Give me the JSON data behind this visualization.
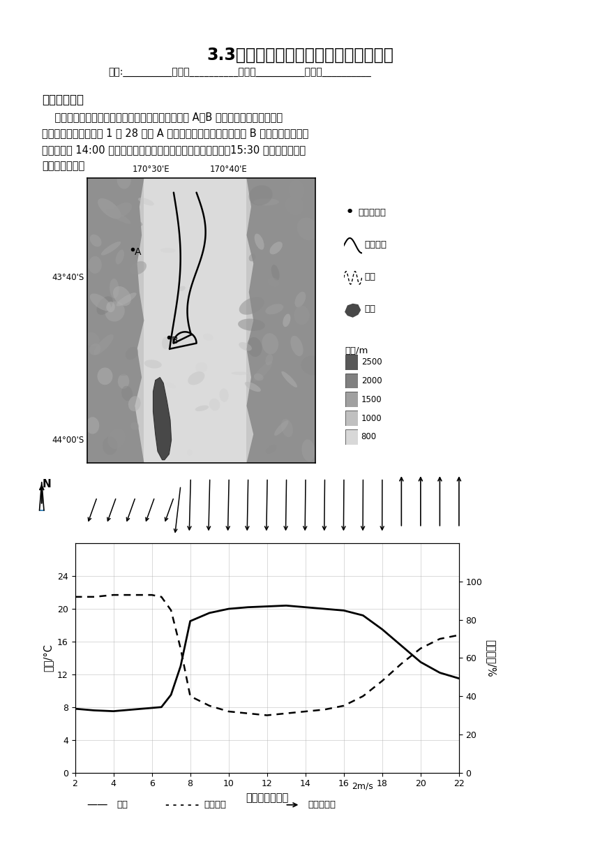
{
  "title": "3.3气压带和风带对气候的影响同步练习",
  "subtitle_fields": "学校:―――――姓名： ―――――班级： ―――――考号： ―――――",
  "section_title": "一、选择题组",
  "paragraph1": "    为了研究某地焦风的发展变化，研究人员在该地设 A、B 两处气象观测点进行观测",
  "paragraph2": "（图左）。图右为某年 1 月 28 日在 A 观测点获取的气象数据。另据 B 观测点数据显示，",
  "paragraph3": "当日地方时 14:00 左右该处出现一个锋面，停留了一段时间后，15:30 左右开始移动。",
  "paragraph4": "完成下面小题。",
  "map_lon1": "170°30'E",
  "map_lon2": "170°40'E",
  "map_lat1": "43°40'S",
  "map_lat2": "44°00'S",
  "legend_items": [
    "气温观测点",
    "锋面位置",
    "河流",
    "湖泊"
  ],
  "altitude_label": "海拔/m",
  "altitude_values": [
    "2500",
    "2000",
    "1500",
    "1000",
    "800"
  ],
  "alt_colors": [
    "#585858",
    "#808080",
    "#a0a0a0",
    "#c0c0c0",
    "#d8d8d8"
  ],
  "chart_xlabel": "时间（地方时）",
  "chart_ylabel_left": "气温/°C",
  "chart_ylabel_right": "相对湿度/%",
  "chart_xticks": [
    2,
    4,
    6,
    8,
    10,
    12,
    14,
    16,
    18,
    20,
    22
  ],
  "chart_yticks_left": [
    0,
    4,
    8,
    12,
    16,
    20,
    24
  ],
  "chart_yticks_right": [
    0,
    20,
    40,
    60,
    80,
    100
  ],
  "temp_time": [
    2,
    3,
    4,
    5,
    6,
    6.5,
    7,
    7.5,
    8,
    9,
    10,
    11,
    12,
    13,
    14,
    15,
    16,
    17,
    18,
    19,
    20,
    21,
    22
  ],
  "temp_vals": [
    7.8,
    7.6,
    7.5,
    7.7,
    7.9,
    8.0,
    9.5,
    13.0,
    18.5,
    19.5,
    20.0,
    20.2,
    20.3,
    20.4,
    20.2,
    20.0,
    19.8,
    19.2,
    17.5,
    15.5,
    13.5,
    12.2,
    11.5
  ],
  "hum_time": [
    2,
    3,
    4,
    5,
    6,
    6.5,
    7,
    7.5,
    8,
    9,
    10,
    11,
    12,
    13,
    14,
    15,
    16,
    17,
    18,
    19,
    20,
    21,
    22
  ],
  "hum_vals": [
    92,
    92,
    93,
    93,
    93,
    92,
    85,
    65,
    40,
    35,
    32,
    31,
    30,
    31,
    32,
    33,
    35,
    40,
    48,
    57,
    65,
    70,
    72
  ],
  "wind_scale": "2m/s",
  "legend_line1": "气温",
  "legend_line2": "相对湿度",
  "legend_line3": "风向和风速",
  "background_color": "#ffffff"
}
